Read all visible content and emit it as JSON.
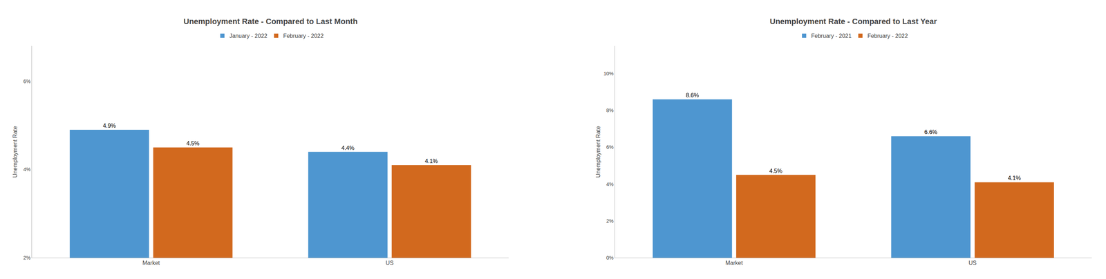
{
  "chart_data": [
    {
      "type": "bar",
      "title": "Unemployment Rate - Compared to Last Month",
      "categories": [
        "Market",
        "US"
      ],
      "series": [
        {
          "name": "January - 2022",
          "color": "#4e96d0",
          "values": [
            4.9,
            4.4
          ],
          "value_labels": [
            "4.9%",
            "4.4%"
          ]
        },
        {
          "name": "February - 2022",
          "color": "#d2691e",
          "values": [
            4.5,
            4.1
          ],
          "value_labels": [
            "4.5%",
            "4.1%"
          ]
        }
      ],
      "ylabel": "Unemployment Rate",
      "ylim": [
        2,
        6.8
      ],
      "yticks": [
        {
          "value": 2,
          "label": "2%"
        },
        {
          "value": 4,
          "label": "4%"
        },
        {
          "value": 6,
          "label": "6%"
        }
      ],
      "grid": false,
      "data_labels": true,
      "legend": "top"
    },
    {
      "type": "bar",
      "title": "Unemployment Rate - Compared to Last Year",
      "categories": [
        "Market",
        "US"
      ],
      "series": [
        {
          "name": "February - 2021",
          "color": "#4e96d0",
          "values": [
            8.6,
            6.6
          ],
          "value_labels": [
            "8.6%",
            "6.6%"
          ]
        },
        {
          "name": "February - 2022",
          "color": "#d2691e",
          "values": [
            4.5,
            4.1
          ],
          "value_labels": [
            "4.5%",
            "4.1%"
          ]
        }
      ],
      "ylabel": "Unemployment Rate",
      "ylim": [
        0,
        11.5
      ],
      "yticks": [
        {
          "value": 0,
          "label": "0%"
        },
        {
          "value": 2,
          "label": "2%"
        },
        {
          "value": 4,
          "label": "4%"
        },
        {
          "value": 6,
          "label": "6%"
        },
        {
          "value": 8,
          "label": "8%"
        },
        {
          "value": 10,
          "label": "10%"
        }
      ],
      "grid": false,
      "data_labels": true,
      "legend": "top"
    }
  ]
}
